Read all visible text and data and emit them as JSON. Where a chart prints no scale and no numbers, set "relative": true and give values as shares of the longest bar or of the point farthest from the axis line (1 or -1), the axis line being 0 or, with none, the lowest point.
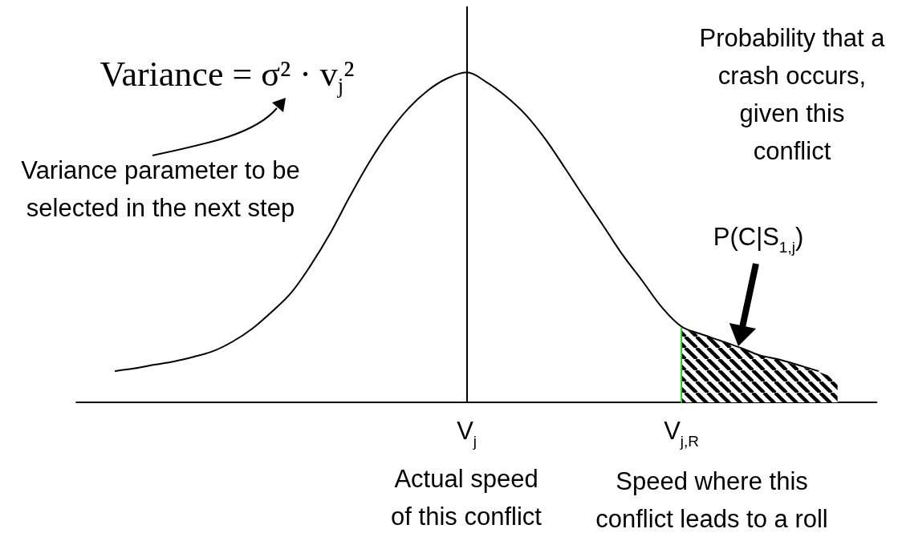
{
  "chart_data": {
    "type": "line",
    "relative": true,
    "tick_labels": "x",
    "marker": "none",
    "categories": [
      null,
      null,
      null,
      null,
      null,
      null,
      null,
      null,
      null,
      null,
      null,
      null,
      null,
      null,
      null,
      null,
      null,
      null,
      null,
      null,
      "V$_{j}$",
      null,
      null,
      null,
      null,
      null,
      null,
      null,
      null,
      null,
      null,
      "V$_{j,R}$",
      null,
      null,
      null,
      null,
      null,
      null,
      null,
      null,
      null,
      null
    ],
    "series": [
      {
        "type": "area",
        "color": "#000000",
        "values": [
          null,
          null,
          null,
          null,
          null,
          null,
          null,
          null,
          null,
          null,
          null,
          null,
          null,
          null,
          null,
          null,
          null,
          null,
          null,
          null,
          null,
          null,
          null,
          null,
          null,
          null,
          null,
          null,
          null,
          null,
          null,
          0.225,
          0.205,
          0.185,
          0.165,
          0.142,
          0.128,
          0.11,
          0.093,
          0.07,
          null,
          null
        ]
      },
      {
        "color": "#000000",
        "values": [
          null,
          null,
          0.095,
          0.103,
          0.114,
          0.124,
          0.138,
          0.155,
          0.184,
          0.223,
          0.274,
          0.332,
          0.415,
          0.512,
          0.623,
          0.727,
          0.817,
          0.89,
          0.945,
          0.982,
          1,
          0.971,
          0.928,
          0.873,
          0.8,
          0.713,
          0.623,
          0.535,
          0.446,
          0.368,
          0.288,
          0.23,
          0.207,
          0.187,
          0.166,
          0.143,
          0.13,
          0.113,
          0.095,
          null,
          null,
          null
        ]
      },
      {
        "color": "#22cc22",
        "x": [
          "V$_{j,R}$",
          "V$_{j,R}$"
        ],
        "values": [
          0,
          0.225
        ]
      }
    ],
    "ref_lines": [
      {
        "axis": "x",
        "value": "V$_{j}$",
        "color": "#000000"
      }
    ],
    "annotations": [
      "Variance = σ² · v$_{j}$²",
      "Variance parameter to be\nselected in the next step",
      "Probability that a\ncrash occurs,\ngiven this\nconflict",
      "P(C|S$_{1,j}$)",
      "Actual speed\nof this conflict",
      "Speed where this\nconflict leads to a roll"
    ]
  }
}
